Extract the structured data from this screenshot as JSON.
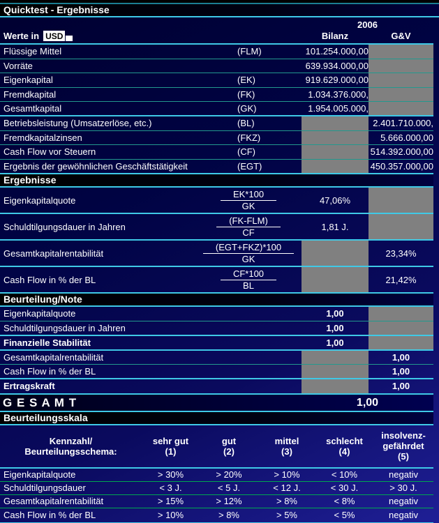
{
  "title": "Quicktest - Ergebnisse",
  "header": {
    "werte_in_label": "Werte in",
    "currency": "USD",
    "year": "2006",
    "col_bilanz": "Bilanz",
    "col_gv": "G&V"
  },
  "sections": {
    "ergebnisse": "Ergebnisse",
    "beurteilung": "Beurteilung/Note",
    "skala": "Beurteilungsskala"
  },
  "base_values": {
    "rows": [
      {
        "label": "Flüssige Mittel",
        "code": "(FLM)",
        "bilanz": "101.254.000,00",
        "gv": ""
      },
      {
        "label": "Vorräte",
        "code": "",
        "bilanz": "639.934.000,00",
        "gv": ""
      },
      {
        "label": "Eigenkapital",
        "code": "(EK)",
        "bilanz": "919.629.000,00",
        "gv": ""
      },
      {
        "label": "Fremdkapital",
        "code": "(FK)",
        "bilanz": "1.034.376.000,",
        "gv": ""
      },
      {
        "label": "Gesamtkapital",
        "code": "(GK)",
        "bilanz": "1.954.005.000,",
        "gv": ""
      },
      {
        "label": "Betriebsleistung (Umsatzerlöse, etc.)",
        "code": "(BL)",
        "bilanz": "",
        "gv": "2.401.710.000,"
      },
      {
        "label": "Fremdkapitalzinsen",
        "code": "(FKZ)",
        "bilanz": "",
        "gv": "5.666.000,00"
      },
      {
        "label": "Cash Flow vor Steuern",
        "code": "(CF)",
        "bilanz": "",
        "gv": "514.392.000,00"
      },
      {
        "label": "Ergebnis der gewöhnlichen Geschäftstätigkeit",
        "code": "(EGT)",
        "bilanz": "",
        "gv": "450.357.000,00"
      }
    ]
  },
  "ratios": {
    "rows": [
      {
        "label": "Eigenkapitalquote",
        "numerator": "EK*100",
        "denominator": "GK",
        "bilanz": "47,06%",
        "gv": ""
      },
      {
        "label": "Schuldtilgungsdauer in Jahren",
        "numerator": "(FK-FLM)",
        "denominator": "CF",
        "bilanz": "1,81 J.",
        "gv": ""
      },
      {
        "label": "Gesamtkapitalrentabilität",
        "numerator": "(EGT+FKZ)*100",
        "denominator": "GK",
        "bilanz": "",
        "gv": "23,34%"
      },
      {
        "label": "Cash Flow in % der BL",
        "numerator": "CF*100",
        "denominator": "BL",
        "bilanz": "",
        "gv": "21,42%"
      }
    ]
  },
  "notes": {
    "rows": [
      {
        "label": "Eigenkapitalquote",
        "bilanz": "1,00",
        "gv": ""
      },
      {
        "label": "Schuldtilgungsdauer in Jahren",
        "bilanz": "1,00",
        "gv": ""
      },
      {
        "label": "Finanzielle Stabilität",
        "bilanz": "1,00",
        "gv": ""
      },
      {
        "label": "Gesamtkapitalrentabilität",
        "bilanz": "",
        "gv": "1,00"
      },
      {
        "label": "Cash Flow in % der BL",
        "bilanz": "",
        "gv": "1,00"
      },
      {
        "label": "Ertragskraft",
        "bilanz": "",
        "gv": "1,00"
      }
    ]
  },
  "gesamt": {
    "label": "G E S A M T",
    "value": "1,00"
  },
  "scale": {
    "header": {
      "kennzahl_line1": "Kennzahl/",
      "kennzahl_line2": "Beurteilungsschema:",
      "grades": [
        {
          "line1": "sehr gut",
          "line2": "(1)"
        },
        {
          "line1": "gut",
          "line2": "(2)"
        },
        {
          "line1": "mittel",
          "line2": "(3)"
        },
        {
          "line1": "schlecht",
          "line2": "(4)"
        },
        {
          "line1": "insolvenz-",
          "line2": "gefährdet",
          "line3": "(5)"
        }
      ]
    },
    "rows": [
      {
        "label": "Eigenkapitalquote",
        "values": [
          "> 30%",
          "> 20%",
          "> 10%",
          "< 10%",
          "negativ"
        ]
      },
      {
        "label": "Schuldtilgungsdauer",
        "values": [
          "< 3 J.",
          "< 5 J.",
          "< 12 J.",
          "< 30 J.",
          "> 30 J."
        ]
      },
      {
        "label": "Gesamtkapitalrentabilität",
        "values": [
          "> 15%",
          "> 12%",
          "> 8%",
          "< 8%",
          "negativ"
        ]
      },
      {
        "label": "Cash Flow in % der BL",
        "values": [
          "> 10%",
          "> 8%",
          "> 5%",
          "< 5%",
          "negativ"
        ]
      }
    ]
  },
  "colors": {
    "grid_cyan": "#3fc9e6",
    "grid_teal": "#22998e",
    "grid_green": "#00a850",
    "grid_dark_teal": "#1b7f92",
    "cell_gray": "#808080",
    "background_navy": "#000343",
    "text": "#ffffff"
  }
}
